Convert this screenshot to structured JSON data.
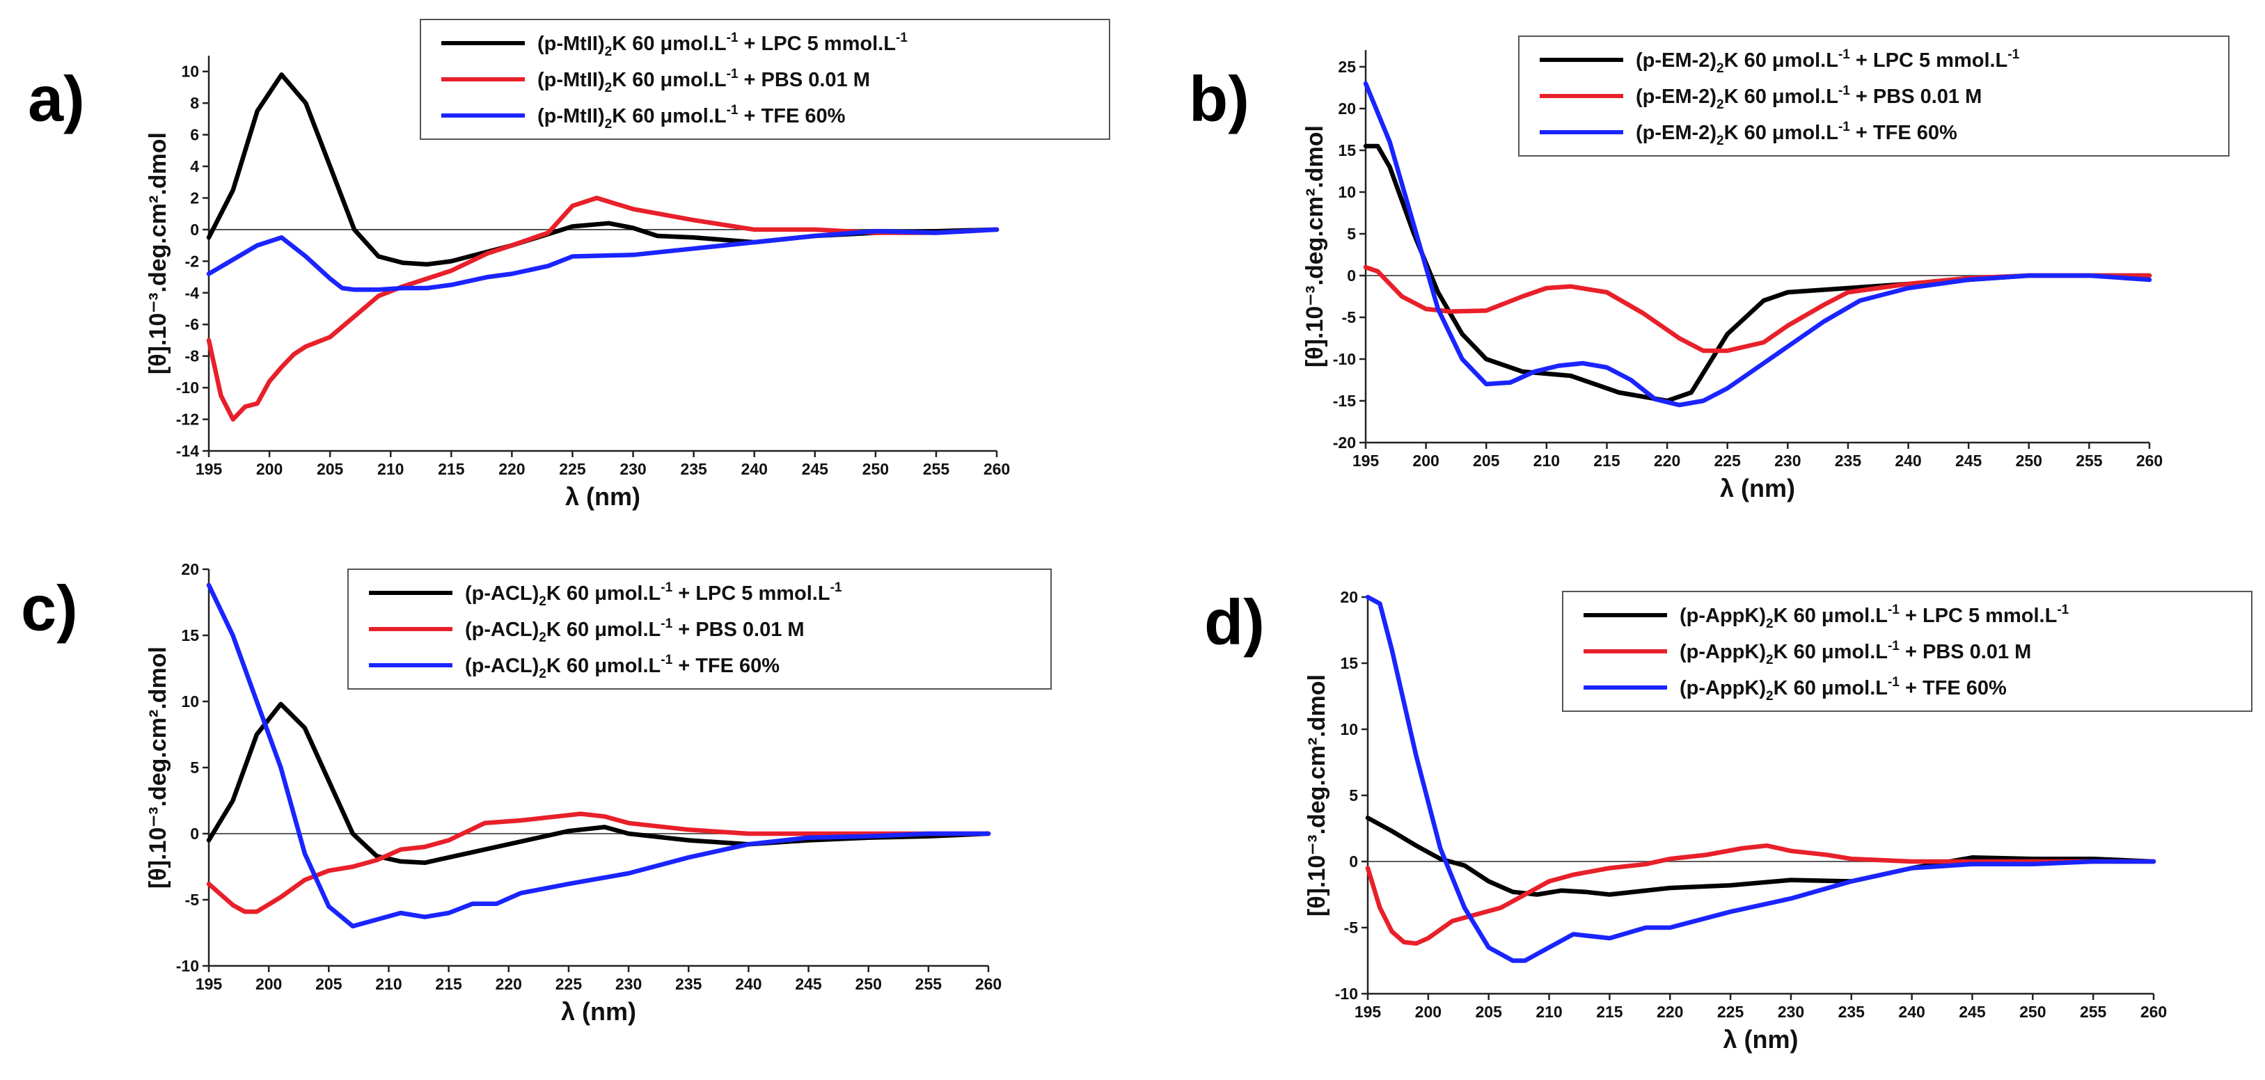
{
  "chart_data": [
    {
      "id": "a",
      "panel_label": "a)",
      "type": "line",
      "xlabel": "λ (nm)",
      "ylabel": "[θ].10⁻³.deg.cm².dmol",
      "xlim": [
        195,
        260
      ],
      "ylim": [
        -14,
        11
      ],
      "xticks": [
        195,
        200,
        205,
        210,
        215,
        220,
        225,
        230,
        235,
        240,
        245,
        250,
        255,
        260
      ],
      "yticks": [
        -14,
        -12,
        -10,
        -8,
        -6,
        -4,
        -2,
        0,
        2,
        4,
        6,
        8,
        10
      ],
      "legend_position": "top-right",
      "series": [
        {
          "name": "LPC 5 mmol.L-1",
          "legend_prefix": "(p-MtII)",
          "legend_sub": "2",
          "legend_suffix": "K 60 μmol.L",
          "legend_sup": "-1",
          "legend_tail": " + LPC 5 mmol.L",
          "legend_tail_sup": "-1",
          "color": "#000000",
          "x": [
            195,
            197,
            199,
            201,
            203,
            205,
            207,
            209,
            211,
            213,
            215,
            220,
            225,
            228,
            230,
            232,
            235,
            240,
            245,
            250,
            255,
            260
          ],
          "y": [
            -0.5,
            2.5,
            7.5,
            9.8,
            8,
            4,
            0,
            -1.7,
            -2.1,
            -2.2,
            -2,
            -1,
            0.2,
            0.4,
            0.1,
            -0.4,
            -0.5,
            -0.8,
            -0.4,
            -0.2,
            -0.1,
            0
          ]
        },
        {
          "name": "PBS 0.01 M",
          "legend_prefix": "(p-MtII)",
          "legend_sub": "2",
          "legend_suffix": "K 60 μmol.L",
          "legend_sup": "-1",
          "legend_tail": " + PBS 0.01 M",
          "legend_tail_sup": "",
          "color": "#e8202a",
          "x": [
            195,
            196,
            197,
            198,
            199,
            200,
            201,
            202,
            203,
            204,
            205,
            207,
            209,
            211,
            213,
            215,
            218,
            220,
            223,
            225,
            227,
            230,
            235,
            240,
            245,
            250,
            255,
            260
          ],
          "y": [
            -7,
            -10.5,
            -12,
            -11.2,
            -11,
            -9.6,
            -8.7,
            -7.9,
            -7.4,
            -7.1,
            -6.8,
            -5.5,
            -4.2,
            -3.6,
            -3.1,
            -2.6,
            -1.5,
            -1,
            -0.2,
            1.5,
            2,
            1.3,
            0.6,
            0,
            0,
            -0.2,
            -0.2,
            0
          ]
        },
        {
          "name": "TFE 60%",
          "legend_prefix": "(p-MtII)",
          "legend_sub": "2",
          "legend_suffix": "K 60 μmol.L",
          "legend_sup": "-1",
          "legend_tail": " + TFE 60%",
          "legend_tail_sup": "",
          "color": "#1a24ff",
          "x": [
            195,
            197,
            199,
            201,
            203,
            205,
            206,
            207,
            209,
            211,
            213,
            215,
            218,
            220,
            223,
            225,
            230,
            235,
            240,
            245,
            250,
            255,
            260
          ],
          "y": [
            -2.8,
            -1.9,
            -1,
            -0.5,
            -1.7,
            -3.1,
            -3.7,
            -3.8,
            -3.8,
            -3.7,
            -3.7,
            -3.5,
            -3,
            -2.8,
            -2.3,
            -1.7,
            -1.6,
            -1.2,
            -0.8,
            -0.4,
            -0.1,
            -0.2,
            0
          ]
        }
      ]
    },
    {
      "id": "b",
      "panel_label": "b)",
      "type": "line",
      "xlabel": "λ (nm)",
      "ylabel": "[θ].10⁻³.deg.cm².dmol",
      "xlim": [
        195,
        260
      ],
      "ylim": [
        -20,
        27
      ],
      "xticks": [
        195,
        200,
        205,
        210,
        215,
        220,
        225,
        230,
        235,
        240,
        245,
        250,
        255,
        260
      ],
      "yticks": [
        -20,
        -15,
        -10,
        -5,
        0,
        5,
        10,
        15,
        20,
        25
      ],
      "legend_position": "top-right",
      "series": [
        {
          "name": "LPC 5 mmol.L-1",
          "legend_prefix": "(p-EM-2)",
          "legend_sub": "2",
          "legend_suffix": "K 60 μmol.L",
          "legend_sup": "-1",
          "legend_tail": " + LPC 5 mmol.L",
          "legend_tail_sup": "-1",
          "color": "#000000",
          "x": [
            195,
            196,
            197,
            199,
            201,
            203,
            205,
            208,
            212,
            216,
            220,
            222,
            225,
            228,
            230,
            235,
            240,
            245,
            250,
            255,
            260
          ],
          "y": [
            15.5,
            15.5,
            13,
            5,
            -2,
            -7,
            -10,
            -11.5,
            -12,
            -14,
            -15,
            -14,
            -7,
            -3,
            -2,
            -1.5,
            -1,
            -0.5,
            0,
            0,
            0
          ]
        },
        {
          "name": "PBS 0.01 M",
          "legend_prefix": "(p-EM-2)",
          "legend_sub": "2",
          "legend_suffix": "K 60 μmol.L",
          "legend_sup": "-1",
          "legend_tail": " + PBS 0.01 M",
          "legend_tail_sup": "",
          "color": "#e8202a",
          "x": [
            195,
            196,
            198,
            200,
            202,
            205,
            208,
            210,
            212,
            215,
            218,
            221,
            223,
            225,
            228,
            230,
            233,
            235,
            240,
            245,
            250,
            255,
            260
          ],
          "y": [
            1,
            0.5,
            -2.5,
            -4,
            -4.3,
            -4.2,
            -2.5,
            -1.5,
            -1.3,
            -2,
            -4.5,
            -7.5,
            -9,
            -9,
            -8,
            -6,
            -3.5,
            -2,
            -1,
            -0.3,
            0,
            0,
            0
          ]
        },
        {
          "name": "TFE 60%",
          "legend_prefix": "(p-EM-2)",
          "legend_sub": "2",
          "legend_suffix": "K 60 μmol.L",
          "legend_sup": "-1",
          "legend_tail": " + TFE 60%",
          "legend_tail_sup": "",
          "color": "#1a24ff",
          "x": [
            195,
            197,
            199,
            201,
            203,
            205,
            207,
            209,
            211,
            213,
            215,
            217,
            219,
            221,
            223,
            225,
            228,
            230,
            233,
            236,
            240,
            245,
            250,
            255,
            260
          ],
          "y": [
            23,
            16,
            6,
            -4,
            -10,
            -13,
            -12.8,
            -11.5,
            -10.8,
            -10.5,
            -11,
            -12.5,
            -14.8,
            -15.5,
            -15,
            -13.5,
            -10.5,
            -8.5,
            -5.5,
            -3,
            -1.5,
            -0.5,
            0,
            0,
            -0.5
          ]
        }
      ]
    },
    {
      "id": "c",
      "panel_label": "c)",
      "type": "line",
      "xlabel": "λ (nm)",
      "ylabel": "[θ].10⁻³.deg.cm².dmol",
      "xlim": [
        195,
        260
      ],
      "ylim": [
        -10,
        20
      ],
      "xticks": [
        195,
        200,
        205,
        210,
        215,
        220,
        225,
        230,
        235,
        240,
        245,
        250,
        255,
        260
      ],
      "yticks": [
        -10,
        -5,
        0,
        5,
        10,
        15,
        20
      ],
      "legend_position": "top-right",
      "series": [
        {
          "name": "LPC 5 mmol.L-1",
          "legend_prefix": "(p-ACL)",
          "legend_sub": "2",
          "legend_suffix": "K 60 μmol.L",
          "legend_sup": "-1",
          "legend_tail": " + LPC 5 mmol.L",
          "legend_tail_sup": "-1",
          "color": "#000000",
          "x": [
            195,
            197,
            199,
            201,
            203,
            205,
            207,
            209,
            211,
            213,
            215,
            220,
            225,
            228,
            230,
            235,
            240,
            245,
            250,
            255,
            260
          ],
          "y": [
            -0.5,
            2.5,
            7.5,
            9.8,
            8,
            4,
            0,
            -1.7,
            -2.1,
            -2.2,
            -1.8,
            -0.8,
            0.2,
            0.5,
            0,
            -0.5,
            -0.8,
            -0.5,
            -0.3,
            -0.2,
            0
          ]
        },
        {
          "name": "PBS 0.01 M",
          "legend_prefix": "(p-ACL)",
          "legend_sub": "2",
          "legend_suffix": "K 60 μmol.L",
          "legend_sup": "-1",
          "legend_tail": " + PBS 0.01 M",
          "legend_tail_sup": "",
          "color": "#e8202a",
          "x": [
            195,
            197,
            198,
            199,
            201,
            203,
            205,
            207,
            209,
            211,
            213,
            215,
            218,
            221,
            223,
            226,
            228,
            230,
            235,
            240,
            245,
            250,
            255,
            260
          ],
          "y": [
            -3.8,
            -5.4,
            -5.9,
            -5.9,
            -4.8,
            -3.5,
            -2.8,
            -2.5,
            -2,
            -1.2,
            -1,
            -0.5,
            0.8,
            1,
            1.2,
            1.5,
            1.3,
            0.8,
            0.3,
            0,
            0,
            0,
            0,
            0
          ]
        },
        {
          "name": "TFE 60%",
          "legend_prefix": "(p-ACL)",
          "legend_sub": "2",
          "legend_suffix": "K 60 μmol.L",
          "legend_sup": "-1",
          "legend_tail": " + TFE 60%",
          "legend_tail_sup": "",
          "color": "#1a24ff",
          "x": [
            195,
            197,
            199,
            201,
            203,
            205,
            207,
            209,
            211,
            213,
            215,
            217,
            219,
            221,
            225,
            230,
            235,
            240,
            245,
            250,
            255,
            260
          ],
          "y": [
            18.8,
            15,
            10,
            5,
            -1.5,
            -5.5,
            -7,
            -6.5,
            -6,
            -6.3,
            -6,
            -5.3,
            -5.3,
            -4.5,
            -3.8,
            -3,
            -1.8,
            -0.8,
            -0.3,
            -0.2,
            0,
            0
          ]
        }
      ]
    },
    {
      "id": "d",
      "panel_label": "d)",
      "type": "line",
      "xlabel": "λ (nm)",
      "ylabel": "[θ].10⁻³.deg.cm².dmol",
      "xlim": [
        195,
        260
      ],
      "ylim": [
        -10,
        20
      ],
      "xticks": [
        195,
        200,
        205,
        210,
        215,
        220,
        225,
        230,
        235,
        240,
        245,
        250,
        255,
        260
      ],
      "yticks": [
        -10,
        -5,
        0,
        5,
        10,
        15,
        20
      ],
      "legend_position": "top-right",
      "series": [
        {
          "name": "LPC 5 mmol.L-1",
          "legend_prefix": "(p-AppK)",
          "legend_sub": "2",
          "legend_suffix": "K 60 μmol.L",
          "legend_sup": "-1",
          "legend_tail": " + LPC 5 mmol.L",
          "legend_tail_sup": "-1",
          "color": "#000000",
          "x": [
            195,
            197,
            199,
            201,
            203,
            205,
            207,
            209,
            211,
            213,
            215,
            220,
            225,
            230,
            235,
            240,
            245,
            250,
            255,
            260
          ],
          "y": [
            3.3,
            2.3,
            1.2,
            0.2,
            -0.3,
            -1.5,
            -2.3,
            -2.5,
            -2.2,
            -2.3,
            -2.5,
            -2,
            -1.8,
            -1.4,
            -1.5,
            -0.5,
            0.3,
            0.2,
            0.2,
            0
          ]
        },
        {
          "name": "PBS 0.01 M",
          "legend_prefix": "(p-AppK)",
          "legend_sub": "2",
          "legend_suffix": "K 60 μmol.L",
          "legend_sup": "-1",
          "legend_tail": " + PBS 0.01 M",
          "legend_tail_sup": "",
          "color": "#e8202a",
          "x": [
            195,
            196,
            197,
            198,
            199,
            200,
            202,
            204,
            206,
            208,
            210,
            212,
            215,
            218,
            220,
            223,
            226,
            228,
            230,
            233,
            235,
            240,
            245,
            250,
            255,
            260
          ],
          "y": [
            -0.5,
            -3.5,
            -5.3,
            -6.1,
            -6.2,
            -5.8,
            -4.5,
            -4,
            -3.5,
            -2.5,
            -1.5,
            -1,
            -0.5,
            -0.2,
            0.2,
            0.5,
            1,
            1.2,
            0.8,
            0.5,
            0.2,
            0,
            0,
            0,
            0,
            0
          ]
        },
        {
          "name": "TFE 60%",
          "legend_prefix": "(p-AppK)",
          "legend_sub": "2",
          "legend_suffix": "K 60 μmol.L",
          "legend_sup": "-1",
          "legend_tail": " + TFE 60%",
          "legend_tail_sup": "",
          "color": "#1a24ff",
          "x": [
            195,
            196,
            197,
            199,
            201,
            203,
            205,
            207,
            208,
            210,
            212,
            215,
            218,
            220,
            225,
            230,
            235,
            240,
            245,
            250,
            255,
            260
          ],
          "y": [
            20,
            19.5,
            16,
            8,
            1,
            -3.5,
            -6.5,
            -7.5,
            -7.5,
            -6.5,
            -5.5,
            -5.8,
            -5,
            -5,
            -3.8,
            -2.8,
            -1.5,
            -0.5,
            -0.2,
            -0.2,
            0,
            0
          ]
        }
      ]
    }
  ]
}
